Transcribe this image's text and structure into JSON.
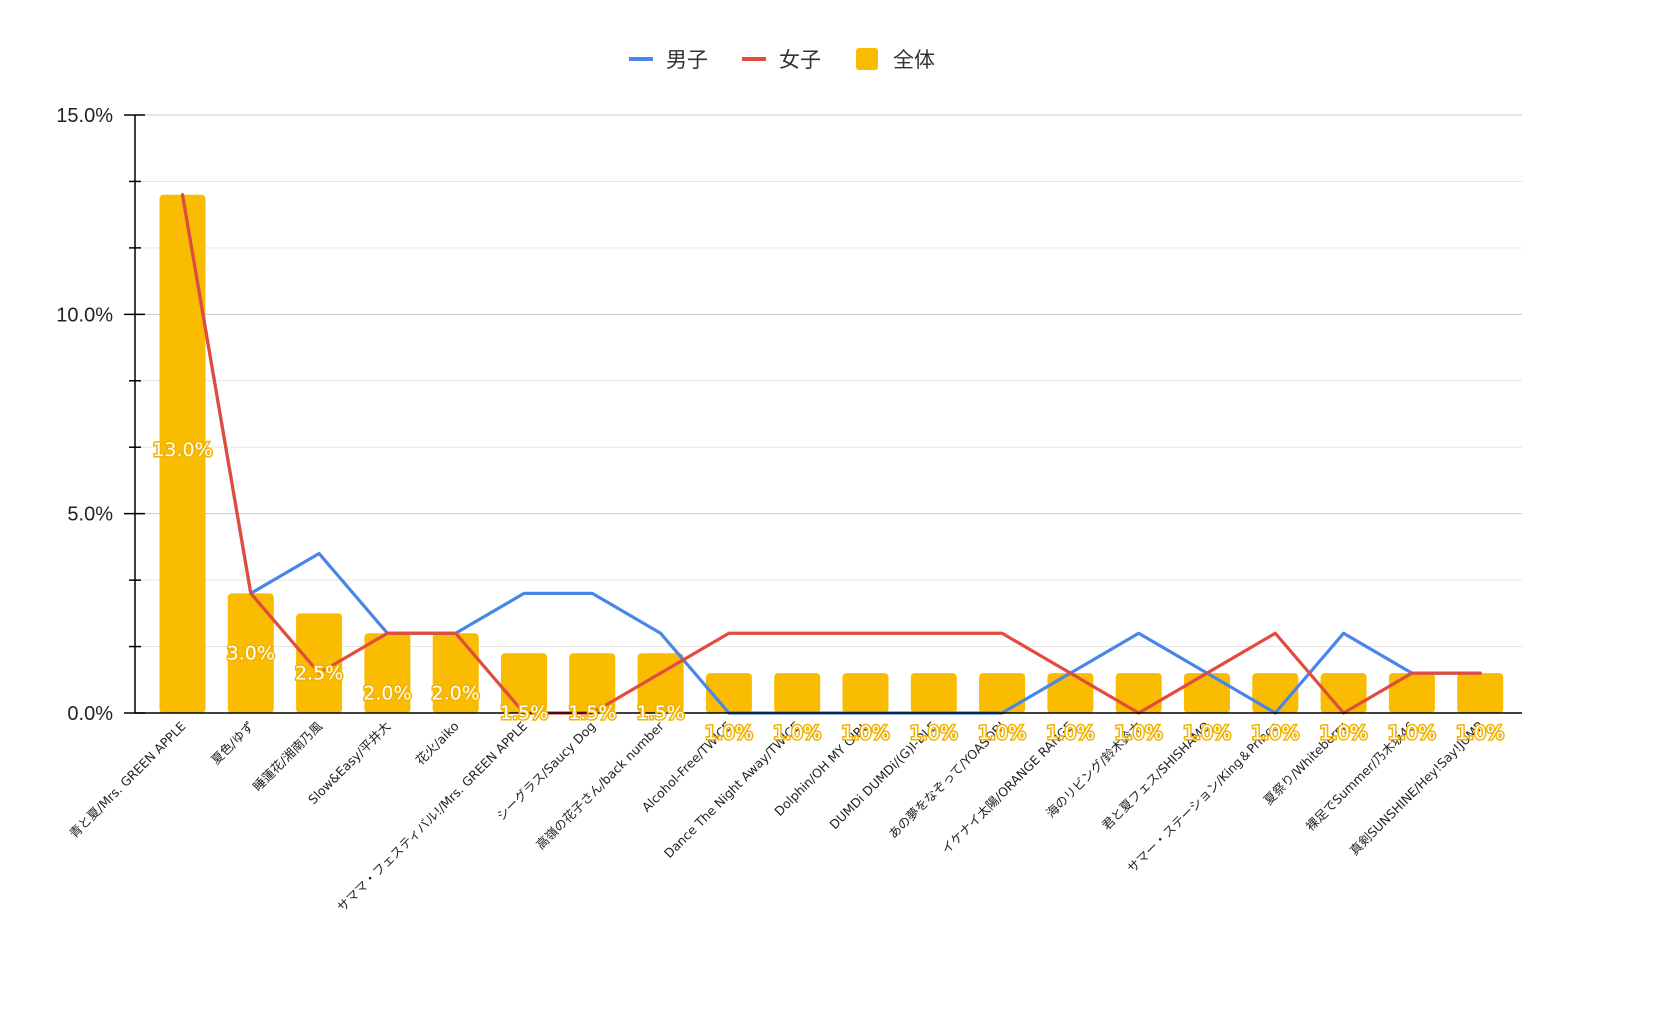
{
  "chart_data": {
    "type": "bar",
    "categories": [
      "青と夏/Mrs. GREEN APPLE",
      "夏色/ゆず",
      "睡蓮花/湘南乃風",
      "Slow&Easy/平井大",
      "花火/aiko",
      "サママ・フェスティバル!/Mrs. GREEN APPLE",
      "シーグラス/Saucy Dog",
      "高嶺の花子さん/back number",
      "Alcohol-Free/TWICE",
      "Dance The Night Away/TWICE",
      "Dolphin/OH MY GIRL",
      "DUMDi DUMDi/(G)I-DLE",
      "あの夢をなぞって/YOASOBI",
      "イケナイ太陽/ORANGE RANGE",
      "海のリビング/鈴木鈴木",
      "君と夏フェス/SHISHAMO",
      "サマー・ステーション/King＆Prince",
      "夏祭り/Whiteberry",
      "裸足でSummer/乃木坂46",
      "真剣SUNSHINE/Hey!Say!JUMP"
    ],
    "series": [
      {
        "name": "男子",
        "type": "line",
        "color": "#4a86e8",
        "values": [
          13.0,
          3.0,
          4.0,
          2.0,
          2.0,
          3.0,
          3.0,
          2.0,
          0.0,
          0.0,
          0.0,
          0.0,
          0.0,
          1.0,
          2.0,
          1.0,
          0.0,
          2.0,
          1.0,
          1.0
        ]
      },
      {
        "name": "女子",
        "type": "line",
        "color": "#e24c3c",
        "values": [
          13.0,
          3.0,
          1.0,
          2.0,
          2.0,
          0.0,
          0.0,
          1.0,
          2.0,
          2.0,
          2.0,
          2.0,
          2.0,
          1.0,
          0.0,
          1.0,
          2.0,
          0.0,
          1.0,
          1.0
        ]
      },
      {
        "name": "全体",
        "type": "bar",
        "color": "#f9bc00",
        "values": [
          13.0,
          3.0,
          2.5,
          2.0,
          2.0,
          1.5,
          1.5,
          1.5,
          1.0,
          1.0,
          1.0,
          1.0,
          1.0,
          1.0,
          1.0,
          1.0,
          1.0,
          1.0,
          1.0,
          1.0
        ],
        "data_labels": [
          "13.0%",
          "3.0%",
          "2.5%",
          "2.0%",
          "2.0%",
          "1.5%",
          "1.5%",
          "1.5%",
          "1.0%",
          "1.0%",
          "1.0%",
          "1.0%",
          "1.0%",
          "1.0%",
          "1.0%",
          "1.0%",
          "1.0%",
          "1.0%",
          "1.0%",
          "1.0%"
        ]
      }
    ],
    "y_ticks": [
      "0.0%",
      "5.0%",
      "10.0%",
      "15.0%"
    ],
    "ylim": [
      0,
      15
    ],
    "unit": "%",
    "grid": true,
    "legend_position": "top-center",
    "colors": {
      "gridline": "#cccccc",
      "axis": "#000000"
    }
  }
}
